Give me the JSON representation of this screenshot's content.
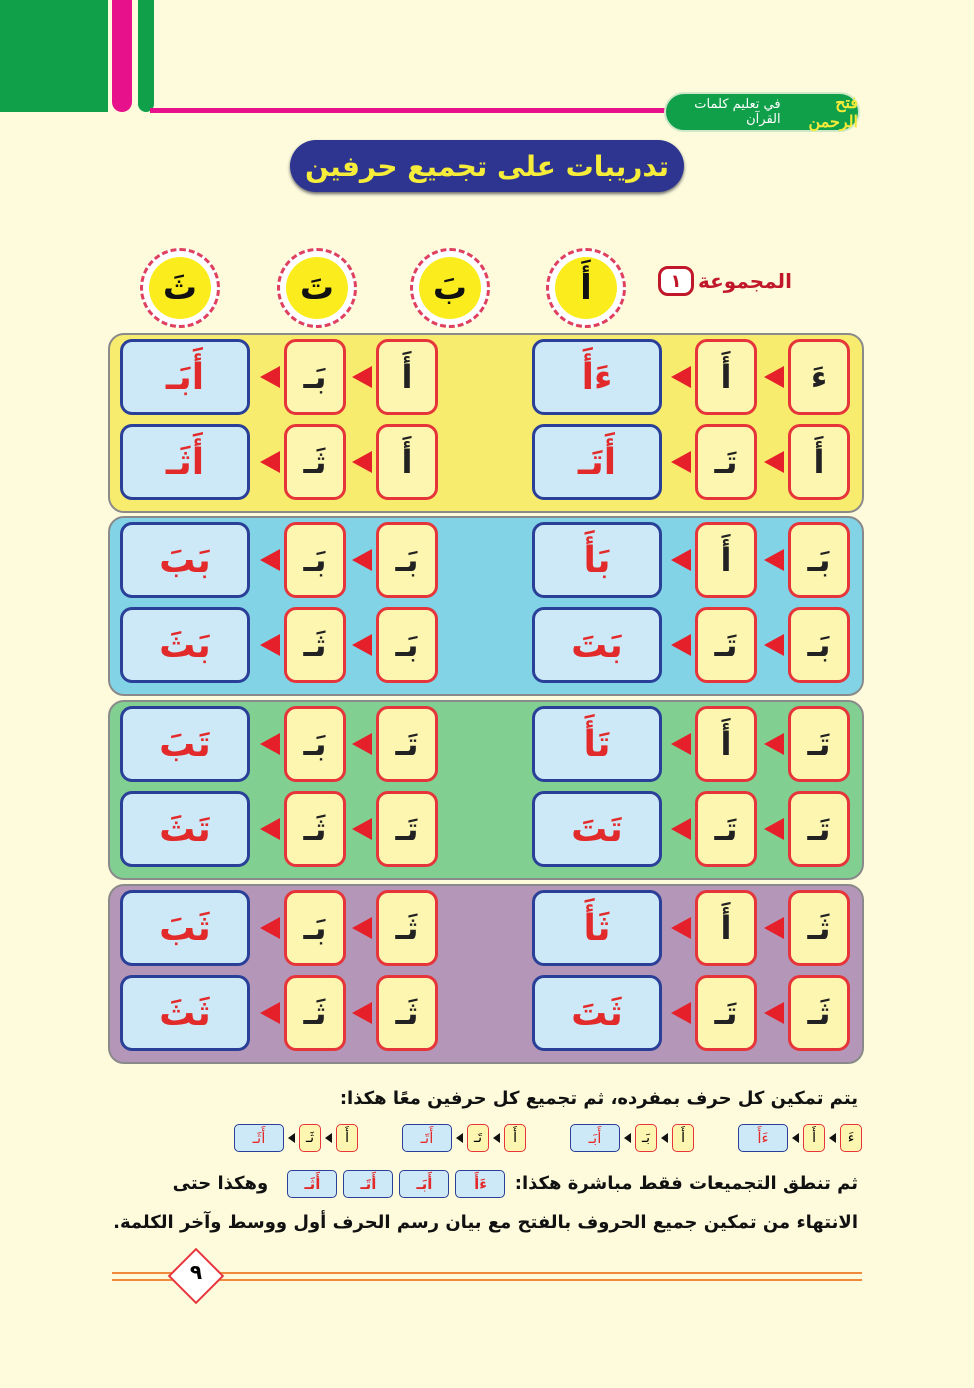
{
  "header": {
    "brand_name": "فتح الرحمن",
    "brand_sub": "في تعليم كلمات القرآن",
    "title": "تدريبات على تجميع حرفين"
  },
  "group": {
    "label": "المجموعة",
    "number": "١"
  },
  "letters": [
    "أَ",
    "بَ",
    "تَ",
    "ثَ"
  ],
  "colors": {
    "bands": [
      "#f8ec6e",
      "#82d3e6",
      "#82cf92",
      "#b497b8"
    ],
    "letter_box": "#fdf6b0",
    "result_box": "#cde9f8",
    "arrow": "#e6202a"
  },
  "bands": [
    {
      "rows": [
        {
          "right": [
            "ءَ",
            "أَ",
            "ءَأَ"
          ],
          "left": [
            "أَ",
            "بَـ",
            "أَبَـ"
          ]
        },
        {
          "right": [
            "أَ",
            "تَـ",
            "أَتَـ"
          ],
          "left": [
            "أَ",
            "ثَـ",
            "أَثَـ"
          ]
        }
      ]
    },
    {
      "rows": [
        {
          "right": [
            "بَـ",
            "أَ",
            "بَأَ"
          ],
          "left": [
            "بَـ",
            "بَـ",
            "بَبَ"
          ]
        },
        {
          "right": [
            "بَـ",
            "تَـ",
            "بَتَ"
          ],
          "left": [
            "بَـ",
            "ثَـ",
            "بَثَ"
          ]
        }
      ]
    },
    {
      "rows": [
        {
          "right": [
            "تَـ",
            "أَ",
            "تَأَ"
          ],
          "left": [
            "تَـ",
            "بَـ",
            "تَبَ"
          ]
        },
        {
          "right": [
            "تَـ",
            "تَـ",
            "تَتَ"
          ],
          "left": [
            "تَـ",
            "ثَـ",
            "تَثَ"
          ]
        }
      ]
    },
    {
      "rows": [
        {
          "right": [
            "ثَـ",
            "أَ",
            "ثَأَ"
          ],
          "left": [
            "ثَـ",
            "بَـ",
            "ثَبَ"
          ]
        },
        {
          "right": [
            "ثَـ",
            "تَـ",
            "ثَتَ"
          ],
          "left": [
            "ثَـ",
            "ثَـ",
            "ثَثَ"
          ]
        }
      ]
    }
  ],
  "instructions": {
    "line1": "يتم تمكين كل حرف بمفرده، ثم تجميع كل حرفين معًا هكذا:",
    "examples": [
      [
        "ءَ",
        "أَ",
        "ءَأَ"
      ],
      [
        "أَ",
        "بَـ",
        "أَبَـ"
      ],
      [
        "أَ",
        "تَـ",
        "أَتَـ"
      ],
      [
        "أَ",
        "ثَـ",
        "أَثَـ"
      ]
    ],
    "line2_start": "ثم تنطق التجميعات فقط مباشرة هكذا:",
    "line2_items": [
      "ءَأَ",
      "أَبَـ",
      "أَتَـ",
      "أَثَـ"
    ],
    "line2_end": "وهكذا حتى",
    "line3": "الانتهاء من تمكين جميع الحروف بالفتح مع بيان رسم الحرف أول ووسط وآخر الكلمة."
  },
  "page_number": "٩"
}
